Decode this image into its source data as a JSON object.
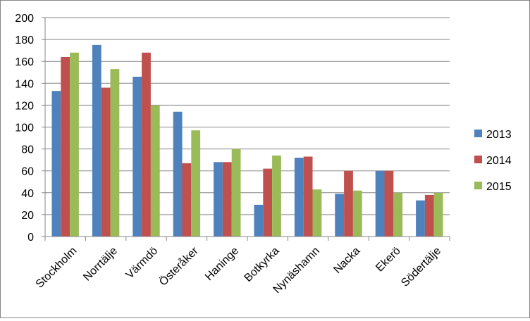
{
  "chart_data": {
    "type": "bar",
    "title": "",
    "xlabel": "",
    "ylabel": "",
    "ylim": [
      0,
      200
    ],
    "yticks": [
      0,
      20,
      40,
      60,
      80,
      100,
      120,
      140,
      160,
      180,
      200
    ],
    "grid": "horizontal",
    "legend_position": "right",
    "categories": [
      "Stockholm",
      "Norrtälje",
      "Värmdö",
      "Österåker",
      "Haninge",
      "Botkyrka",
      "Nynäshamn",
      "Nacka",
      "Ekerö",
      "Södertälje"
    ],
    "series": [
      {
        "name": "2013",
        "color": "#4F81BD",
        "values": [
          133,
          175,
          146,
          114,
          68,
          29,
          72,
          39,
          60,
          33
        ]
      },
      {
        "name": "2014",
        "color": "#C0504D",
        "values": [
          164,
          136,
          168,
          67,
          68,
          62,
          73,
          60,
          60,
          38
        ]
      },
      {
        "name": "2015",
        "color": "#9BBB59",
        "values": [
          168,
          153,
          120,
          97,
          80,
          74,
          43,
          42,
          40,
          40
        ]
      }
    ]
  }
}
